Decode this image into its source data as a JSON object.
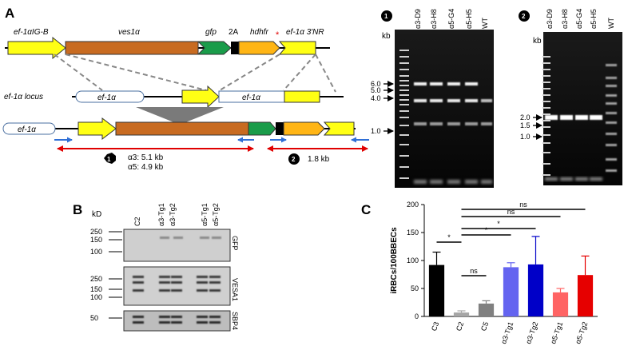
{
  "panels": {
    "a": "A",
    "b": "B",
    "c": "C"
  },
  "construct": {
    "promoter_label": "ef-1αIG-B",
    "gene_label": "ves1α",
    "gfp_label": "gfp",
    "two_a_label": "2A",
    "hdhfr_label": "hdhfr",
    "star": "*",
    "utr_label": "ef-1α 3'NR",
    "locus_label": "ef-1α locus",
    "locus_box1": "ef-1α",
    "locus_box2": "ef-1α",
    "integrated_box": "ef-1α",
    "product1_num": "1",
    "product1_a3": "α3: 5.1 kb",
    "product1_a5": "α5: 4.9 kb",
    "product2_num": "2",
    "product2_size": "1.8 kb"
  },
  "gel1": {
    "num": "1",
    "kb": "kb",
    "lanes": [
      "α3-D9",
      "α3-H8",
      "α5-G4",
      "α5-H5",
      "WT"
    ],
    "markers": [
      "6.0",
      "5.0",
      "4.0",
      "1.0"
    ]
  },
  "gel2": {
    "num": "2",
    "kb": "kb",
    "lanes": [
      "α3-D9",
      "α3-H8",
      "α5-G4",
      "α5-H5",
      "WT"
    ],
    "markers": [
      "2.0",
      "1.5",
      "1.0"
    ]
  },
  "western": {
    "kd": "kD",
    "lanes": [
      "C2",
      "α3-Tg1",
      "α3-Tg2",
      "α5-Tg1",
      "α5-Tg2"
    ],
    "blots": [
      {
        "label": "GFP",
        "ticks": [
          "250",
          "150",
          "100"
        ]
      },
      {
        "label": "VESA1",
        "ticks": [
          "250",
          "150",
          "100"
        ]
      },
      {
        "label": "SBP4",
        "ticks": [
          "50"
        ]
      }
    ]
  },
  "chart_data": {
    "type": "bar",
    "ylabel": "iRBCs/100BBECs",
    "ylim": [
      0,
      200
    ],
    "yticks": [
      0,
      50,
      100,
      150,
      200
    ],
    "categories": [
      "C3",
      "C2",
      "C5",
      "α3-Tg1",
      "α3-Tg2",
      "α5-Tg1",
      "α5-Tg2"
    ],
    "values": [
      92,
      7,
      23,
      88,
      93,
      43,
      74
    ],
    "errors": [
      23,
      3,
      5,
      8,
      50,
      7,
      34
    ],
    "colors": [
      "#000000",
      "#a6a6a6",
      "#808080",
      "#6464f0",
      "#0000c8",
      "#ff6464",
      "#e60000"
    ],
    "significance": [
      {
        "from": "C3",
        "to": "C2",
        "label": "*"
      },
      {
        "from": "C2",
        "to": "C5",
        "label": "ns"
      },
      {
        "from": "C2",
        "to": "α3-Tg1",
        "label": "*"
      },
      {
        "from": "C2",
        "to": "α3-Tg2",
        "label": "*"
      },
      {
        "from": "C2",
        "to": "α5-Tg1",
        "label": "ns"
      },
      {
        "from": "C2",
        "to": "α5-Tg2",
        "label": "ns"
      }
    ]
  }
}
